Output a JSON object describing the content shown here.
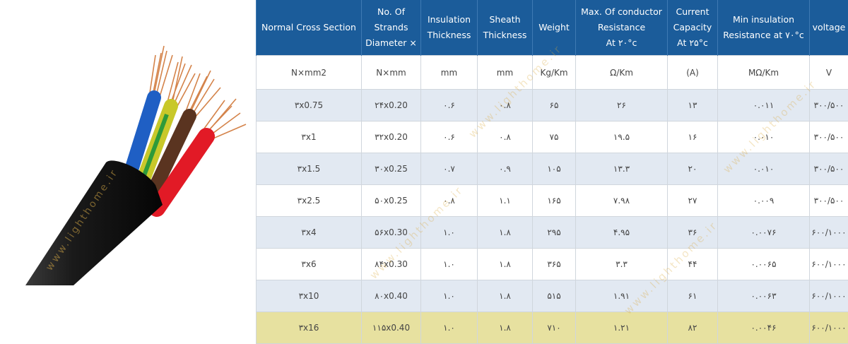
{
  "photo": {
    "watermark": "www.lighthome.ir",
    "colors": {
      "jacket": "#1a1a1a",
      "wire_blue": "#1f5fc4",
      "wire_green_yellow": "#c8c82a",
      "wire_brown": "#5a3420",
      "wire_red": "#e21a26",
      "copper": "#d4834a"
    }
  },
  "table": {
    "header_color": "#1b5c9a",
    "headers": [
      [
        "Normal Cross Section"
      ],
      [
        "No. Of",
        "Strands",
        "Diameter ×"
      ],
      [
        "Insulation",
        "Thickness"
      ],
      [
        "Sheath",
        "Thickness"
      ],
      [
        "Weight"
      ],
      [
        "Max. Of conductor",
        "Resistance",
        "At ۲۰°c"
      ],
      [
        "Current",
        "Capacity",
        "At ۲۵°c"
      ],
      [
        "Min insulation",
        "Resistance at ۷۰°c"
      ],
      [
        "voltage"
      ]
    ],
    "units": [
      "N×mm2",
      "N×mm",
      "mm",
      "mm",
      "Kg/Km",
      "Ω/Km",
      "(A)",
      "MΩ/Km",
      "V"
    ],
    "rows": [
      [
        "۳x0.75",
        "۲۴x0.20",
        "۰.۶",
        "۰.۸",
        "۶۵",
        "۲۶",
        "۱۳",
        "۰.۰۱۱",
        "۳۰۰/۵۰۰"
      ],
      [
        "۳x1",
        "۳۲x0.20",
        "۰.۶",
        "۰.۸",
        "۷۵",
        "۱۹.۵",
        "۱۶",
        "۰.۰۱۰",
        "۳۰۰/۵۰۰"
      ],
      [
        "۳x1.5",
        "۳۰x0.25",
        "۰.۷",
        "۰.۹",
        "۱۰۵",
        "۱۳.۳",
        "۲۰",
        "۰.۰۱۰",
        "۳۰۰/۵۰۰"
      ],
      [
        "۳x2.5",
        "۵۰x0.25",
        "۰.۸",
        "۱.۱",
        "۱۶۵",
        "۷.۹۸",
        "۲۷",
        "۰.۰۰۹",
        "۳۰۰/۵۰۰"
      ],
      [
        "۳x4",
        "۵۶x0.30",
        "۱.۰",
        "۱.۸",
        "۲۹۵",
        "۴.۹۵",
        "۳۶",
        "۰.۰۰۷۶",
        "۶۰۰/۱۰۰۰"
      ],
      [
        "۳x6",
        "۸۴x0.30",
        "۱.۰",
        "۱.۸",
        "۳۶۵",
        "۳.۳",
        "۴۴",
        "۰.۰۰۶۵",
        "۶۰۰/۱۰۰۰"
      ],
      [
        "۳x10",
        "۸۰x0.40",
        "۱.۰",
        "۱.۸",
        "۵۱۵",
        "۱.۹۱",
        "۶۱",
        "۰.۰۰۶۳",
        "۶۰۰/۱۰۰۰"
      ],
      [
        "۳x16",
        "۱۱۵x0.40",
        "۱.۰",
        "۱.۸",
        "۷۱۰",
        "۱.۲۱",
        "۸۲",
        "۰.۰۰۴۶",
        "۶۰۰/۱۰۰۰"
      ]
    ],
    "highlight_color": "#e7e1a0",
    "alt_row_color": "#e2e9f2"
  }
}
